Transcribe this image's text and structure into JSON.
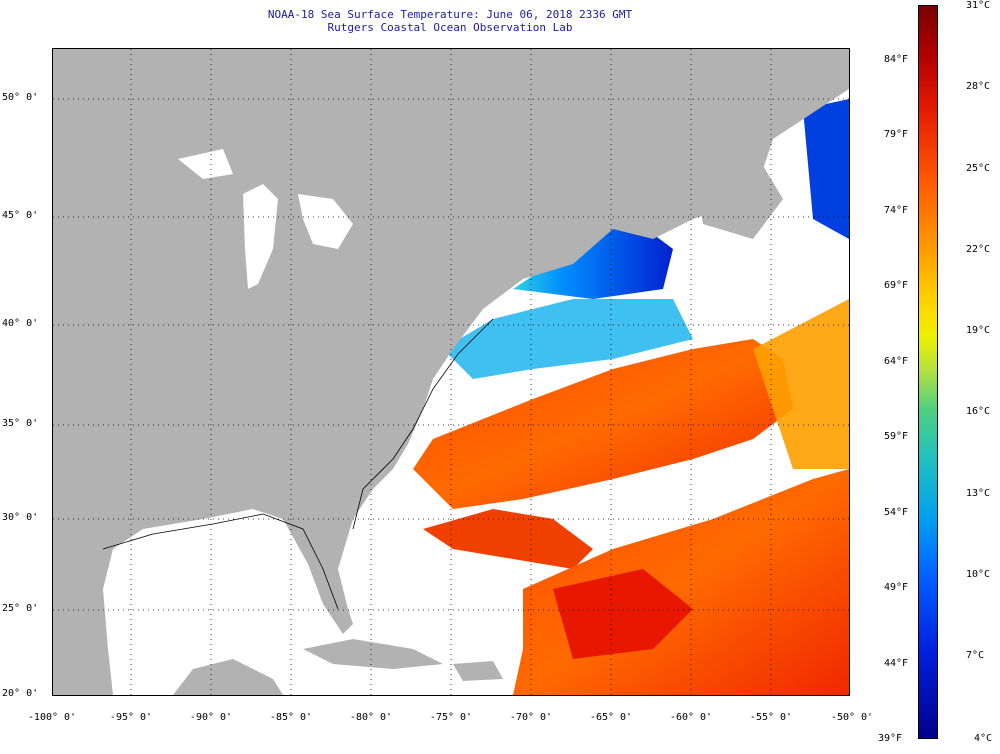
{
  "title": {
    "line1": "NOAA-18 Sea Surface Temperature:  June 06, 2018 2336 GMT",
    "line2": "Rutgers Coastal Ocean Observation Lab"
  },
  "map": {
    "lat_labels": [
      "50° 0'",
      "45° 0'",
      "40° 0'",
      "35° 0'",
      "30° 0'",
      "25° 0'",
      "20° 0'"
    ],
    "lon_labels": [
      "-100° 0'",
      "-95° 0'",
      "-90° 0'",
      "-85° 0'",
      "-80° 0'",
      "-75° 0'",
      "-70° 0'",
      "-65° 0'",
      "-60° 0'",
      "-55° 0'",
      "-50° 0'"
    ],
    "colors": {
      "land": "#b2b2b2",
      "cloud": "#ffffff",
      "graticule": "#000000"
    }
  },
  "colorbar": {
    "fahrenheit": [
      "84°F",
      "79°F",
      "74°F",
      "69°F",
      "64°F",
      "59°F",
      "54°F",
      "49°F",
      "44°F",
      "39°F"
    ],
    "celsius": [
      "31°C",
      "28°C",
      "25°C",
      "22°C",
      "19°C",
      "16°C",
      "13°C",
      "10°C",
      "7°C",
      "4°C"
    ]
  }
}
